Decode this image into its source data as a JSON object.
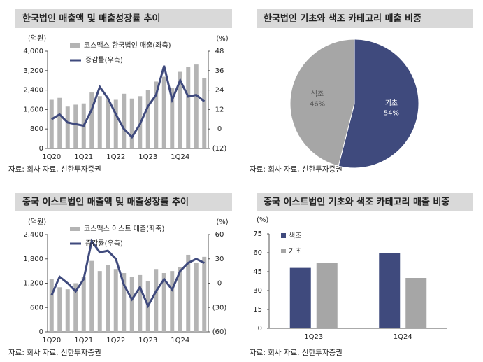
{
  "chart_data": [
    {
      "type": "combo",
      "title": "한국법인 매출액 및 매출성장률 추이",
      "ylabel": "(억원)",
      "y2label": "(%)",
      "source": "자료: 회사 자료, 신한투자증권",
      "categories": [
        "1Q20",
        null,
        null,
        null,
        "1Q21",
        null,
        null,
        null,
        "1Q22",
        null,
        null,
        null,
        "1Q23",
        null,
        null,
        null,
        "1Q24",
        null,
        null,
        null
      ],
      "series": [
        {
          "name": "코스맥스 한국법인 매출(좌축)",
          "color": "#b4b4b4",
          "axis": "y",
          "values": [
            2000,
            2080,
            1720,
            1800,
            1850,
            2300,
            2150,
            2050,
            2000,
            2250,
            2050,
            2150,
            2400,
            2750,
            2950,
            2500,
            3150,
            3350,
            3450,
            2900
          ]
        },
        {
          "name": "증감률(우축)",
          "color": "#3f4a7d",
          "axis": "y2",
          "values": [
            6,
            9,
            4,
            3,
            2,
            12,
            26,
            19,
            9,
            0,
            -5,
            3,
            14,
            21,
            39,
            18,
            30,
            20,
            21,
            17
          ]
        }
      ],
      "ylim": [
        0,
        4000
      ],
      "yticks": [
        0,
        800,
        {
          "value": 1600,
          "label": "1,600"
        },
        {
          "value": 2400,
          "label": "2,400"
        },
        {
          "value": 3200,
          "label": "3,200"
        },
        {
          "value": 4000,
          "label": "4,000"
        }
      ],
      "y2lim": [
        -12,
        48
      ],
      "y2ticks": [
        {
          "value": -12,
          "label": "(12)"
        },
        0,
        12,
        24,
        36,
        48
      ]
    },
    {
      "type": "pie",
      "title": "한국법인 기초와 색조 카테고리 매출 비중",
      "source": "자료: 회사 자료, 신한투자증권",
      "categories": [
        "기초",
        "색조"
      ],
      "values": [
        54,
        46
      ],
      "value_labels": [
        "54%",
        "46%"
      ],
      "colors": [
        "#3f4a7d",
        "#a6a6a6"
      ]
    },
    {
      "type": "combo",
      "title": "중국 이스트법인 매출액 및 매출성장률 추이",
      "ylabel": "(억원)",
      "y2label": "(%)",
      "source": "자료: 회사 자료, 신한투자증권",
      "categories": [
        "1Q20",
        null,
        null,
        null,
        "1Q21",
        null,
        null,
        null,
        "1Q22",
        null,
        null,
        null,
        "1Q23",
        null,
        null,
        null,
        "1Q24",
        null,
        null,
        null
      ],
      "series": [
        {
          "name": "코스맥스 이스트 매출(좌축)",
          "color": "#b4b4b4",
          "axis": "y",
          "values": [
            1300,
            1100,
            1050,
            1200,
            1350,
            1750,
            1500,
            1650,
            1550,
            1450,
            1350,
            1400,
            1250,
            1550,
            1450,
            1500,
            1600,
            1900,
            1700,
            1850
          ]
        },
        {
          "name": "증감률(우축)",
          "color": "#3f4a7d",
          "axis": "y2",
          "values": [
            -15,
            8,
            0,
            -10,
            5,
            52,
            38,
            40,
            30,
            -2,
            -20,
            -5,
            -28,
            -10,
            5,
            -8,
            15,
            25,
            30,
            25
          ]
        }
      ],
      "ylim": [
        0,
        2400
      ],
      "yticks": [
        0,
        600,
        {
          "value": 1200,
          "label": "1,200"
        },
        {
          "value": 1800,
          "label": "1,800"
        },
        {
          "value": 2400,
          "label": "2,400"
        }
      ],
      "y2lim": [
        -60,
        60
      ],
      "y2ticks": [
        {
          "value": -60,
          "label": "(60)"
        },
        {
          "value": -30,
          "label": "(30)"
        },
        0,
        30,
        60
      ]
    },
    {
      "type": "bar",
      "title": "중국 이스트법인 기초와 색조 카테고리 매출 비중",
      "ylabel": "(%)",
      "source": "자료: 회사 자료, 신한투자증권",
      "categories": [
        "1Q23",
        "1Q24"
      ],
      "series": [
        {
          "name": "색조",
          "color": "#3f4a7d",
          "values": [
            48,
            60
          ]
        },
        {
          "name": "기초",
          "color": "#a6a6a6",
          "values": [
            52,
            40
          ]
        }
      ],
      "ylim": [
        0,
        75
      ],
      "yticks": [
        0,
        15,
        30,
        45,
        60,
        75
      ]
    }
  ]
}
